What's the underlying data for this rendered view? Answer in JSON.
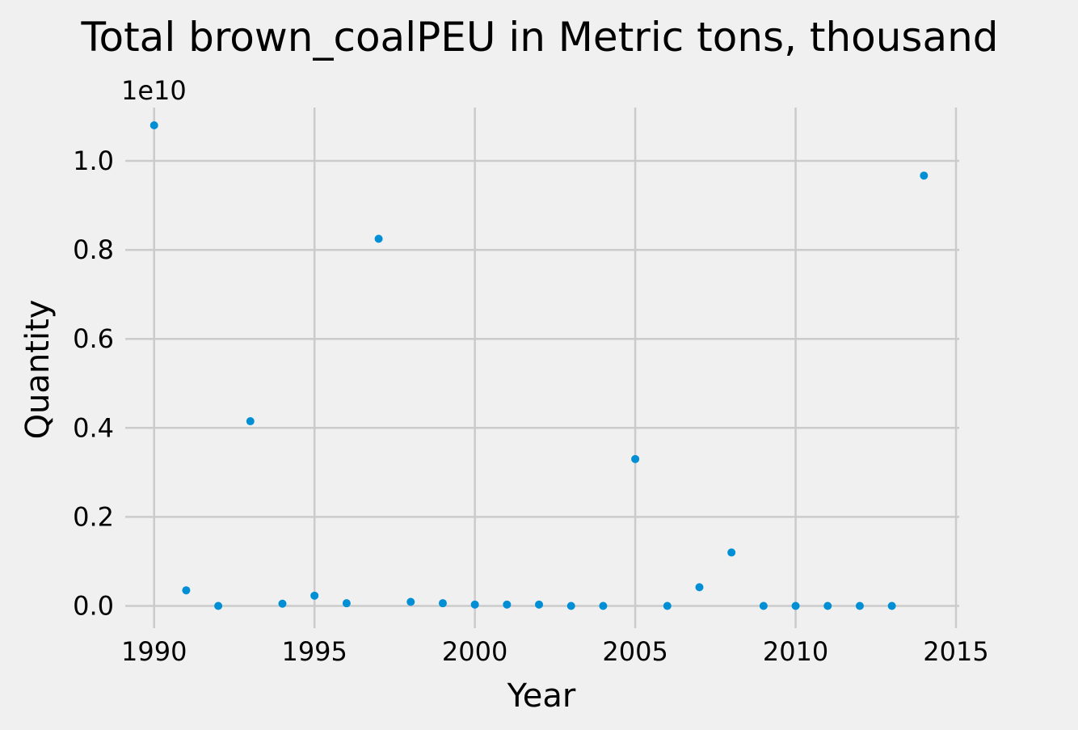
{
  "chart_data": {
    "type": "scatter",
    "title": "Total brown_coalPEU in Metric tons,  thousand",
    "xlabel": "Year",
    "ylabel": "Quantity",
    "y_offset_label": "1e10",
    "xlim": [
      1989.1,
      2015.1
    ],
    "ylim": [
      -0.05,
      1.12
    ],
    "x_ticks": [
      1990,
      1995,
      2000,
      2005,
      2010,
      2015
    ],
    "x_tick_labels": [
      "1990",
      "1995",
      "2000",
      "2005",
      "2010",
      "2015"
    ],
    "y_ticks": [
      0.0,
      0.2,
      0.4,
      0.6,
      0.8,
      1.0
    ],
    "y_tick_labels": [
      "0.0",
      "0.2",
      "0.4",
      "0.6",
      "0.8",
      "1.0"
    ],
    "grid": true,
    "color": "#008fd5",
    "x": [
      1990,
      1991,
      1992,
      1993,
      1994,
      1995,
      1996,
      1997,
      1998,
      1999,
      2000,
      2001,
      2002,
      2003,
      2004,
      2005,
      2006,
      2007,
      2008,
      2009,
      2010,
      2011,
      2012,
      2013,
      2014
    ],
    "y": [
      1.08,
      0.035,
      0.0,
      0.415,
      0.005,
      0.023,
      0.006,
      0.825,
      0.009,
      0.006,
      0.003,
      0.003,
      0.003,
      0.0,
      0.0,
      0.33,
      0.0,
      0.042,
      0.12,
      0.0,
      0.0,
      0.0,
      0.0,
      0.0,
      0.967
    ]
  }
}
